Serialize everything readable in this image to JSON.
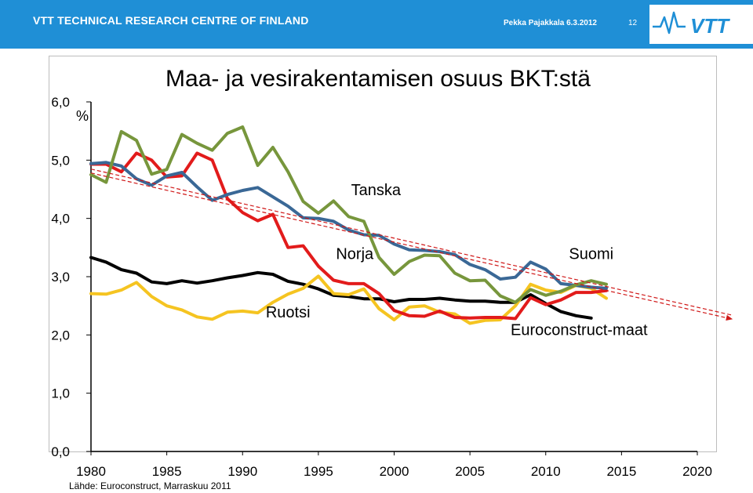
{
  "header": {
    "organization": "VTT TECHNICAL RESEARCH CENTRE OF FINLAND",
    "author_date": "Pekka Pajakkala 6.3.2012",
    "page_number": "12",
    "logo_text": "VTT",
    "brand_color": "#1f8fd6"
  },
  "source": "Lähde: Euroconstruct, Marraskuu 2011",
  "chart_data": {
    "type": "line",
    "title": "Maa- ja vesirakentamisen osuus BKT:stä",
    "ylabel": "%",
    "xlabel": "",
    "ylim": [
      0,
      6
    ],
    "xlim": [
      1980,
      2020
    ],
    "yticks": [
      "0,0",
      "1,0",
      "2,0",
      "3,0",
      "4,0",
      "5,0",
      "6,0"
    ],
    "xticks": [
      "1980",
      "1985",
      "1990",
      "1995",
      "2000",
      "2005",
      "2010",
      "2015",
      "2020"
    ],
    "grid": false,
    "legend": "inline labels",
    "labels": [
      {
        "text": "Tanska",
        "x": 1998.8,
        "y": 4.4
      },
      {
        "text": "Norja",
        "x": 1997.4,
        "y": 3.3
      },
      {
        "text": "Suomi",
        "x": 2013.0,
        "y": 3.3
      },
      {
        "text": "Ruotsi",
        "x": 1993.0,
        "y": 2.3
      },
      {
        "text": "Euroconstruct-maat",
        "x": 2012.2,
        "y": 2.0
      }
    ],
    "series": [
      {
        "color": "#000000",
        "x": [
          1980,
          1981,
          1982,
          1983,
          1984,
          1985,
          1986,
          1987,
          1988,
          1989,
          1990,
          1991,
          1992,
          1993,
          1994,
          1995,
          1996,
          1997,
          1998,
          1999,
          2000,
          2001,
          2002,
          2003,
          2004,
          2005,
          2006,
          2007,
          2008,
          2009,
          2010,
          2011,
          2012,
          2013
        ],
        "values": [
          3.33,
          3.25,
          3.12,
          3.06,
          2.91,
          2.88,
          2.93,
          2.89,
          2.93,
          2.98,
          3.02,
          3.07,
          3.04,
          2.92,
          2.87,
          2.79,
          2.68,
          2.66,
          2.62,
          2.62,
          2.57,
          2.61,
          2.61,
          2.63,
          2.6,
          2.58,
          2.58,
          2.56,
          2.56,
          2.69,
          2.54,
          2.4,
          2.33,
          2.29
        ]
      },
      {
        "color": "#f5c421",
        "x": [
          1980,
          1981,
          1982,
          1983,
          1984,
          1985,
          1986,
          1987,
          1988,
          1989,
          1990,
          1991,
          1992,
          1993,
          1994,
          1995,
          1996,
          1997,
          1998,
          1999,
          2000,
          2001,
          2002,
          2003,
          2004,
          2005,
          2006,
          2007,
          2008,
          2009,
          2010,
          2011,
          2012,
          2013,
          2014
        ],
        "values": [
          2.71,
          2.7,
          2.77,
          2.9,
          2.66,
          2.5,
          2.43,
          2.31,
          2.27,
          2.39,
          2.41,
          2.38,
          2.56,
          2.7,
          2.8,
          3.01,
          2.71,
          2.69,
          2.79,
          2.45,
          2.26,
          2.48,
          2.5,
          2.39,
          2.36,
          2.2,
          2.25,
          2.26,
          2.5,
          2.87,
          2.77,
          2.73,
          2.85,
          2.8,
          2.63
        ]
      },
      {
        "color": "#e21b1b",
        "x": [
          1980,
          1981,
          1982,
          1983,
          1984,
          1985,
          1986,
          1987,
          1988,
          1989,
          1990,
          1991,
          1992,
          1993,
          1994,
          1995,
          1996,
          1997,
          1998,
          1999,
          2000,
          2001,
          2002,
          2003,
          2004,
          2005,
          2006,
          2007,
          2008,
          2009,
          2010,
          2011,
          2012,
          2013,
          2014
        ],
        "values": [
          4.93,
          4.93,
          4.8,
          5.12,
          5.0,
          4.71,
          4.73,
          5.12,
          5.0,
          4.34,
          4.1,
          3.96,
          4.07,
          3.5,
          3.53,
          3.18,
          2.94,
          2.88,
          2.88,
          2.71,
          2.42,
          2.33,
          2.32,
          2.41,
          2.3,
          2.29,
          2.3,
          2.3,
          2.28,
          2.64,
          2.52,
          2.6,
          2.73,
          2.73,
          2.76
        ]
      },
      {
        "color": "#3a6896",
        "x": [
          1980,
          1981,
          1982,
          1983,
          1984,
          1985,
          1986,
          1987,
          1988,
          1989,
          1990,
          1991,
          1992,
          1993,
          1994,
          1995,
          1996,
          1997,
          1998,
          1999,
          2000,
          2001,
          2002,
          2003,
          2004,
          2005,
          2006,
          2007,
          2008,
          2009,
          2010,
          2011,
          2012,
          2013,
          2014
        ],
        "values": [
          4.94,
          4.96,
          4.9,
          4.68,
          4.57,
          4.73,
          4.79,
          4.54,
          4.31,
          4.41,
          4.48,
          4.53,
          4.37,
          4.21,
          4.01,
          4.0,
          3.95,
          3.8,
          3.72,
          3.71,
          3.56,
          3.46,
          3.45,
          3.43,
          3.38,
          3.21,
          3.12,
          2.96,
          2.99,
          3.25,
          3.13,
          2.88,
          2.85,
          2.82,
          2.8
        ]
      },
      {
        "color": "#77963c",
        "x": [
          1980,
          1981,
          1982,
          1983,
          1984,
          1985,
          1986,
          1987,
          1988,
          1989,
          1990,
          1991,
          1992,
          1993,
          1994,
          1995,
          1996,
          1997,
          1998,
          1999,
          2000,
          2001,
          2002,
          2003,
          2004,
          2005,
          2006,
          2007,
          2008,
          2009,
          2010,
          2011,
          2012,
          2013,
          2014
        ],
        "values": [
          4.75,
          4.62,
          5.49,
          5.34,
          4.76,
          4.84,
          5.44,
          5.29,
          5.17,
          5.46,
          5.57,
          4.91,
          5.22,
          4.8,
          4.29,
          4.09,
          4.3,
          4.03,
          3.95,
          3.33,
          3.04,
          3.26,
          3.37,
          3.36,
          3.06,
          2.93,
          2.94,
          2.67,
          2.56,
          2.78,
          2.68,
          2.75,
          2.86,
          2.93,
          2.87
        ]
      }
    ],
    "trendline": {
      "color": "#d01818",
      "style": "dashed-arrow",
      "x": [
        1980,
        2020
      ],
      "values": [
        4.82,
        2.3
      ]
    }
  }
}
